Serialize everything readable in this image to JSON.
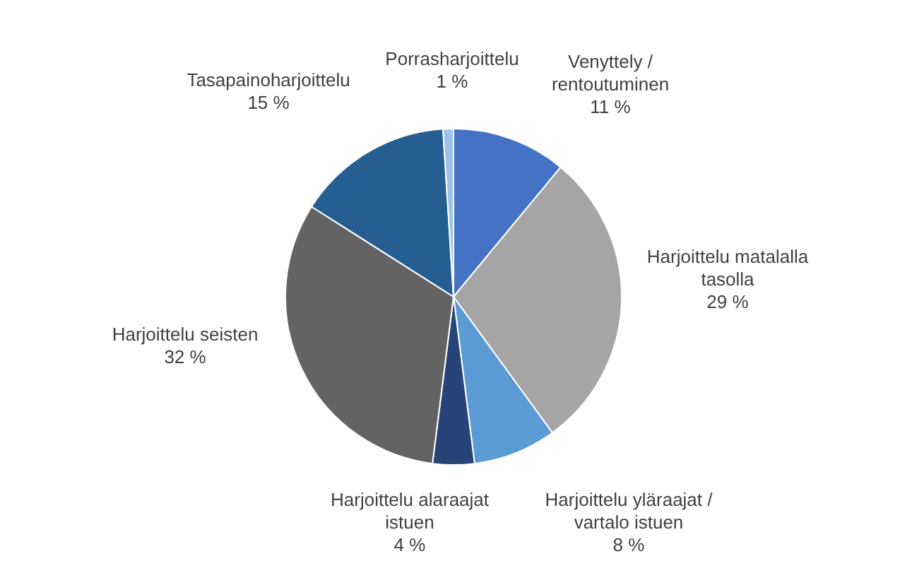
{
  "chart_data": {
    "type": "pie",
    "categories": [
      "Venyttely / rentoutuminen",
      "Harjoittelu matalalla tasolla",
      "Harjoittelu yläraajat / vartalo istuen",
      "Harjoittelu alaraajat istuen",
      "Harjoittelu seisten",
      "Tasapainoharjoittelu",
      "Porrasharjoittelu"
    ],
    "values": [
      11,
      29,
      8,
      4,
      32,
      15,
      1
    ],
    "value_labels": [
      "11 %",
      "29 %",
      "8 %",
      "4 %",
      "32 %",
      "15 %",
      "1 %"
    ],
    "colors": [
      "#4472c4",
      "#a5a5a5",
      "#5b9bd5",
      "#264478",
      "#636363",
      "#255e91",
      "#9dc3e6"
    ]
  }
}
